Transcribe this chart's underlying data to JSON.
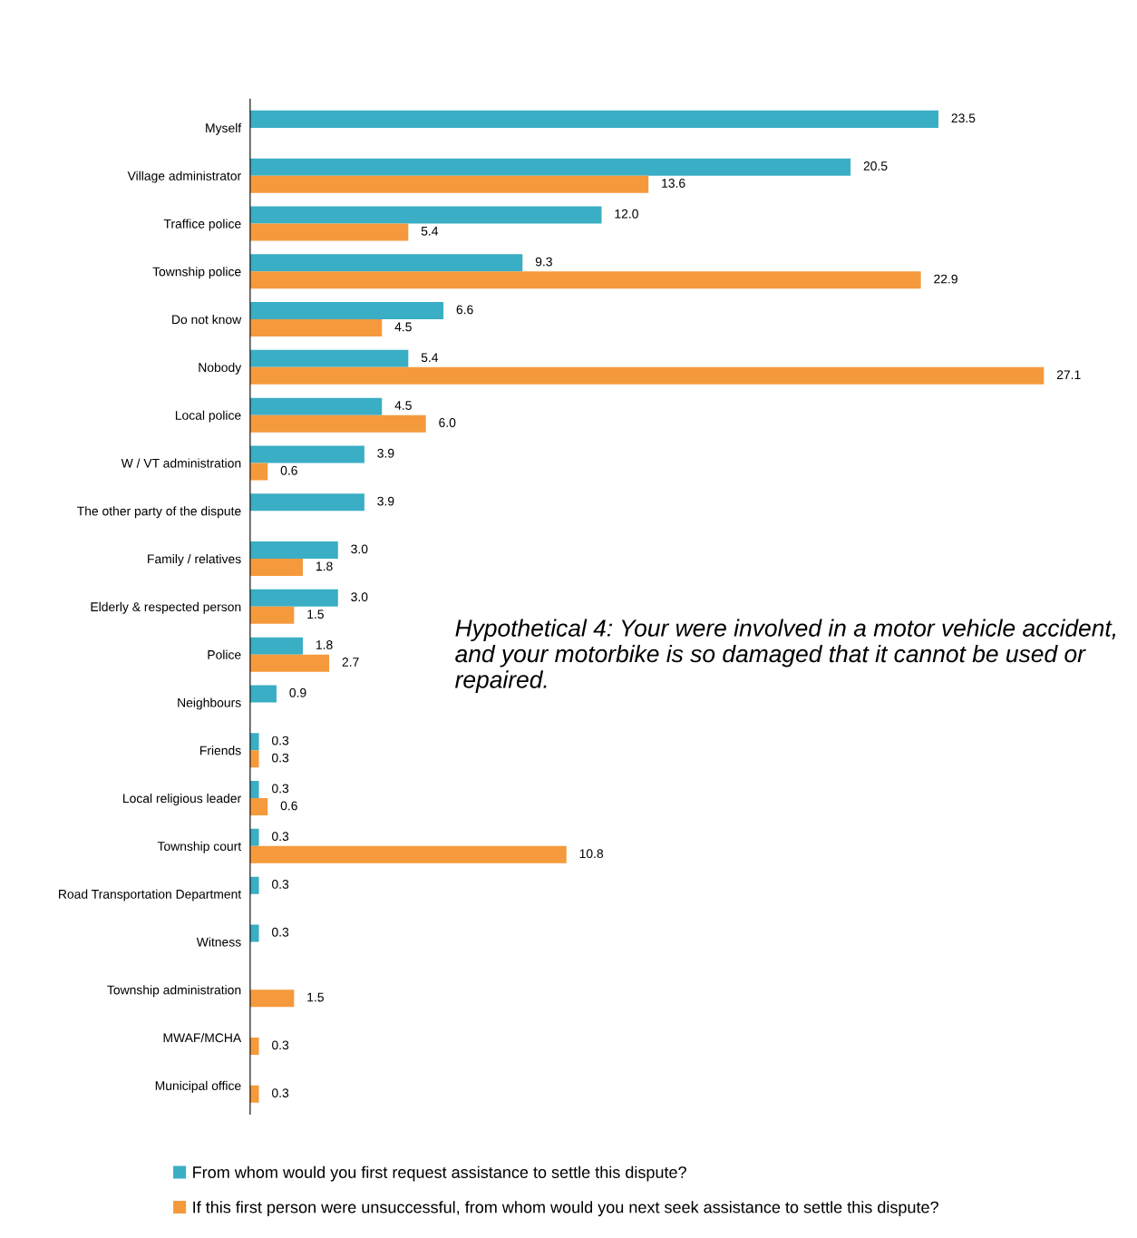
{
  "chart_data": {
    "type": "bar",
    "orientation": "horizontal",
    "legend": "bottom",
    "grid": false,
    "tick_labels": "y",
    "categories": [
      "Myself",
      "Village administrator",
      "Traffice police",
      "Township police",
      "Do not know",
      "Nobody",
      "Local police",
      "W / VT administration",
      "The other party of the dispute",
      "Family / relatives",
      "Elderly & respected person",
      "Police",
      "Neighbours",
      "Friends",
      "Local religious leader",
      "Township court",
      "Road Transportation Department",
      "Witness",
      "Township administration",
      "MWAF/MCHA",
      "Municipal office"
    ],
    "series": [
      {
        "name": "From whom would you first request assistance to settle this dispute?",
        "color": "#3aaec4",
        "values": [
          23.5,
          20.5,
          12.0,
          9.3,
          6.6,
          5.4,
          4.5,
          3.9,
          3.9,
          3.0,
          3.0,
          1.8,
          0.9,
          0.3,
          0.3,
          0.3,
          0.3,
          0.3,
          null,
          null,
          null
        ],
        "value_labels": [
          "23.5",
          "20.5",
          "12.0",
          "9.3",
          "6.6",
          "5.4",
          "4.5",
          "3.9",
          "3.9",
          "3.0",
          "3.0",
          "1.8",
          "0.9",
          "0.3",
          "0.3",
          "0.3",
          "0.3",
          "0.3",
          null,
          null,
          null
        ]
      },
      {
        "name": "If this first person were unsuccessful, from whom would you next seek assistance to settle this dispute?",
        "color": "#f59a3c",
        "values": [
          null,
          13.6,
          5.4,
          22.9,
          4.5,
          27.1,
          6.0,
          0.6,
          null,
          1.8,
          1.5,
          2.7,
          null,
          0.3,
          0.6,
          10.8,
          null,
          null,
          1.5,
          0.3,
          0.3
        ],
        "value_labels": [
          null,
          "13.6",
          "5.4",
          "22.9",
          "4.5",
          "27.1",
          "6.0",
          "0.6",
          null,
          "1.8",
          "1.5",
          "2.7",
          null,
          "0.3",
          "0.6",
          "10.8",
          null,
          null,
          "1.5",
          "0.3",
          "0.3"
        ]
      }
    ],
    "annotations": [
      "Hypothetical 4: Your were involved in a motor vehicle accident, and your motorbike is so damaged that it cannot be used or repaired."
    ]
  }
}
